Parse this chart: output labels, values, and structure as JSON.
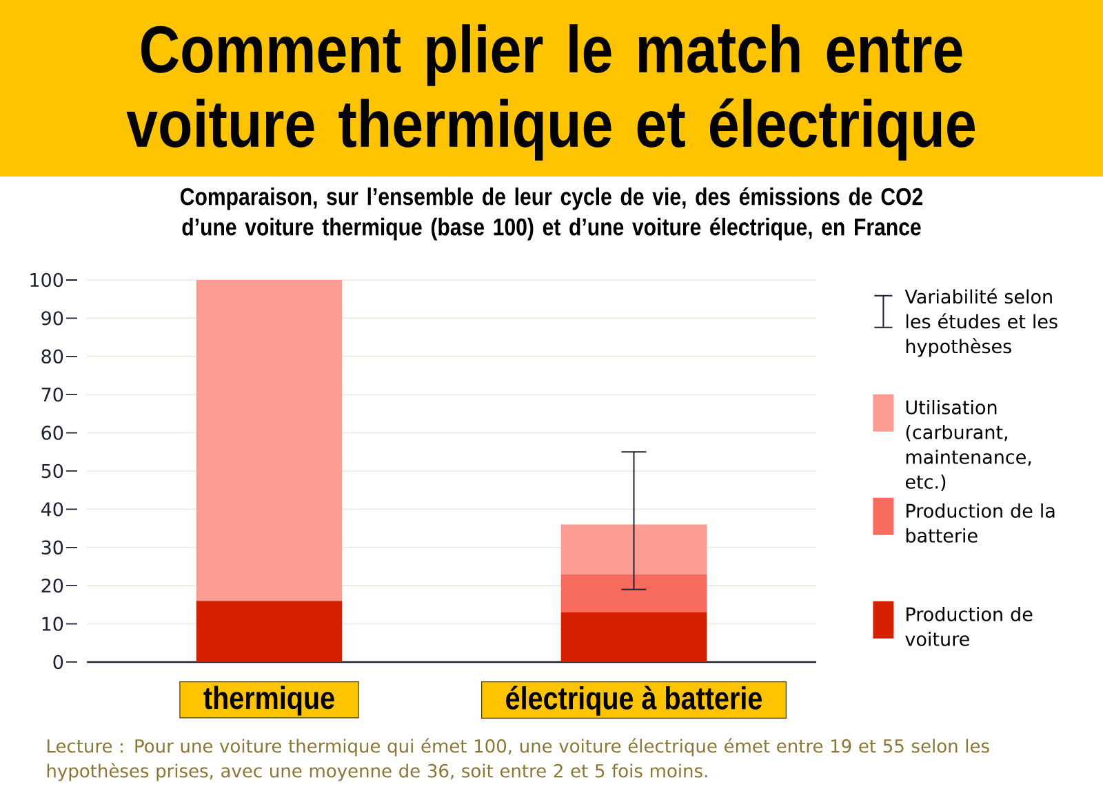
{
  "chart_data": {
    "type": "bar",
    "title": "Comment plier le match entre voiture thermique et électrique",
    "subtitle": "Comparaison, sur l’ensemble de leur cycle de vie, des émissions de CO2 d’une voiture thermique (base 100) et d’une voiture électrique, en France",
    "categories": [
      "thermique",
      "électrique à batterie"
    ],
    "stacked": true,
    "series": [
      {
        "name": "Production de voiture",
        "color": "#d42000",
        "values": [
          16,
          13
        ]
      },
      {
        "name": "Production de la batterie",
        "color": "#f86b5f",
        "values": [
          0,
          10
        ]
      },
      {
        "name": "Utilisation (carburant, maintenance, etc.)",
        "color": "#fc9b91",
        "values": [
          84,
          13
        ],
        "errors": [
          null,
          [
            19,
            55
          ]
        ]
      }
    ],
    "ylim": [
      0,
      100
    ],
    "yticks": [
      0,
      10,
      20,
      30,
      40,
      50,
      60,
      70,
      80,
      90,
      100
    ],
    "grid": "y",
    "legend": "right",
    "annotations": [
      "Variabilité selon les études et les hypothèses",
      "Lecture : Pour une voiture thermique qui émet 100, une voiture électrique émet entre 19 et 55 selon les hypothèses prises, avec une moyenne de 36, soit entre 2 et 5 fois moins."
    ]
  }
}
